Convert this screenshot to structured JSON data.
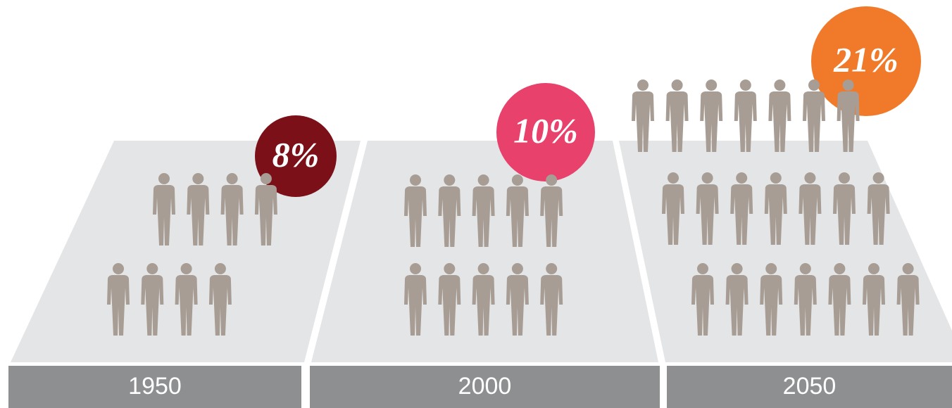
{
  "chart_data": {
    "type": "pictogram",
    "categories": [
      "1950",
      "2000",
      "2050"
    ],
    "values": [
      8,
      10,
      21
    ],
    "value_labels": [
      "8%",
      "10%",
      "21%"
    ],
    "colors": [
      "#7b1019",
      "#e8416b",
      "#f07a2a"
    ]
  }
}
